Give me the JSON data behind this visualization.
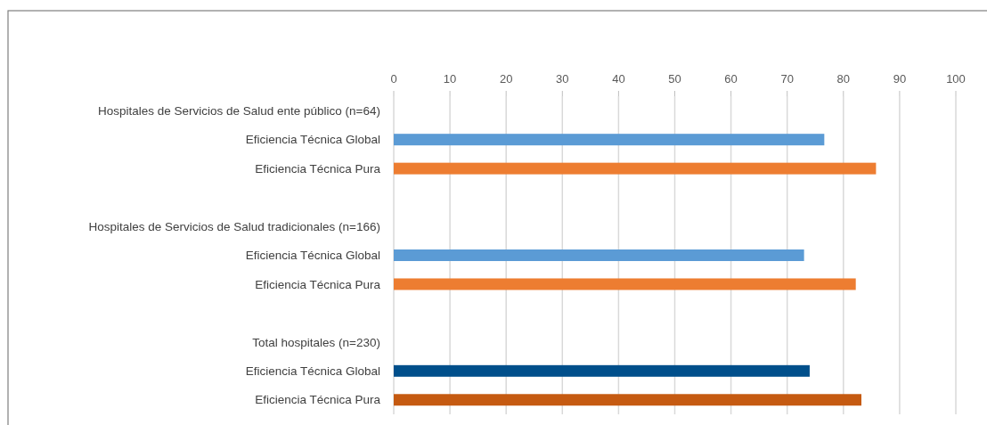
{
  "chart_data": {
    "type": "bar",
    "orientation": "horizontal",
    "categories": [
      "Hospitales de Servicios de Salud ente público (n=64)",
      "Eficiencia Técnica Global",
      "Eficiencia Técnica Pura",
      null,
      "Hospitales de Servicios de Salud tradicionales (n=166)",
      "Eficiencia Técnica Global",
      "Eficiencia Técnica Pura",
      null,
      "Total hospitales (n=230)",
      "Eficiencia Técnica Global",
      "Eficiencia Técnica Pura"
    ],
    "values": [
      null,
      76.6,
      85.8,
      null,
      null,
      73.0,
      82.2,
      null,
      null,
      74.0,
      83.2
    ],
    "colors": [
      null,
      "#5b9bd5",
      "#ed7d31",
      null,
      null,
      "#5b9bd5",
      "#ed7d31",
      null,
      null,
      "#004f8b",
      "#c55a11"
    ],
    "xlim": [
      0,
      100
    ],
    "xticks": [
      0,
      10,
      20,
      30,
      40,
      50,
      60,
      70,
      80,
      90,
      100
    ],
    "grid": "x"
  }
}
